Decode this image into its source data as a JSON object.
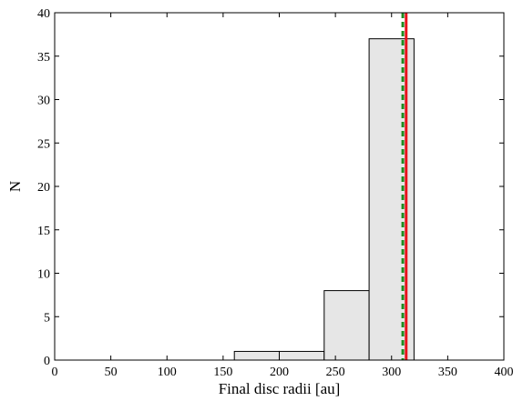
{
  "chart_data": {
    "type": "bar",
    "title": "",
    "xlabel": "Final disc radii [au]",
    "ylabel": "N",
    "xlim": [
      0,
      400
    ],
    "ylim": [
      0,
      40
    ],
    "grid": false,
    "x_ticks": [
      "0",
      "50",
      "100",
      "150",
      "200",
      "250",
      "300",
      "350",
      "400"
    ],
    "y_ticks": [
      "0",
      "5",
      "10",
      "15",
      "20",
      "25",
      "30",
      "35",
      "40"
    ],
    "bins": [
      {
        "x0": 160,
        "x1": 200,
        "count": 1
      },
      {
        "x0": 200,
        "x1": 240,
        "count": 1
      },
      {
        "x0": 240,
        "x1": 280,
        "count": 8
      },
      {
        "x0": 280,
        "x1": 320,
        "count": 37
      }
    ],
    "vertical_lines": [
      {
        "x": 313,
        "style": "solid",
        "color": "#e8131b"
      },
      {
        "x": 310,
        "style": "dashed",
        "color": "#1f8a1f"
      }
    ],
    "bar_fill": "#e6e6e6",
    "bar_edge": "#000000"
  }
}
